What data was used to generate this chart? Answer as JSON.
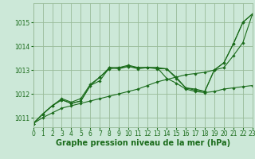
{
  "background_color": "#cce8d8",
  "grid_color": "#99bb99",
  "line_color": "#1a6b1a",
  "marker_color": "#1a6b1a",
  "xlabel": "Graphe pression niveau de la mer (hPa)",
  "xlabel_fontsize": 7.0,
  "xlim": [
    0,
    23
  ],
  "ylim": [
    1010.6,
    1015.8
  ],
  "yticks": [
    1011,
    1012,
    1013,
    1014,
    1015
  ],
  "xticks": [
    0,
    1,
    2,
    3,
    4,
    5,
    6,
    7,
    8,
    9,
    10,
    11,
    12,
    13,
    14,
    15,
    16,
    17,
    18,
    19,
    20,
    21,
    22,
    23
  ],
  "series": [
    {
      "x": [
        0,
        1,
        2,
        3,
        4,
        5,
        6,
        7,
        8,
        9,
        10,
        11,
        12,
        13,
        14,
        15,
        16,
        17,
        18,
        19,
        20,
        21,
        22,
        23
      ],
      "y": [
        1010.75,
        1011.0,
        1011.2,
        1011.4,
        1011.5,
        1011.6,
        1011.7,
        1011.8,
        1011.9,
        1012.0,
        1012.1,
        1012.2,
        1012.35,
        1012.5,
        1012.6,
        1012.7,
        1012.8,
        1012.85,
        1012.9,
        1013.0,
        1013.1,
        1013.6,
        1014.15,
        1015.35
      ]
    },
    {
      "x": [
        0,
        1,
        2,
        3,
        4,
        5,
        6,
        7,
        8,
        9,
        10,
        11,
        12,
        13,
        14,
        15,
        16,
        17,
        18,
        19,
        20,
        21,
        22,
        23
      ],
      "y": [
        1010.75,
        1011.15,
        1011.5,
        1011.75,
        1011.6,
        1011.7,
        1012.35,
        1012.7,
        1013.05,
        1013.1,
        1013.15,
        1013.1,
        1013.1,
        1013.1,
        1012.65,
        1012.45,
        1012.2,
        1012.1,
        1012.05,
        1012.1,
        1012.2,
        1012.25,
        1012.3,
        1012.35
      ]
    },
    {
      "x": [
        0,
        1,
        2,
        3,
        4,
        5,
        6,
        7,
        8,
        9,
        10,
        11,
        12,
        13,
        14,
        15,
        16,
        17,
        18,
        19,
        20,
        21,
        22,
        23
      ],
      "y": [
        1010.75,
        1011.15,
        1011.5,
        1011.75,
        1011.6,
        1011.7,
        1012.35,
        1012.55,
        1013.1,
        1013.05,
        1013.15,
        1013.05,
        1013.1,
        1013.05,
        1013.05,
        1012.7,
        1012.25,
        1012.15,
        1012.1,
        1013.0,
        1013.3,
        1014.1,
        1015.0,
        1015.35
      ]
    },
    {
      "x": [
        0,
        1,
        2,
        3,
        4,
        5,
        6,
        7,
        8,
        9,
        10,
        11,
        12,
        13,
        14,
        15,
        16,
        17,
        18,
        19,
        20,
        21,
        22,
        23
      ],
      "y": [
        1010.75,
        1011.15,
        1011.5,
        1011.8,
        1011.65,
        1011.8,
        1012.4,
        1012.7,
        1013.1,
        1013.1,
        1013.2,
        1013.1,
        1013.1,
        1013.1,
        1013.05,
        1012.65,
        1012.25,
        1012.2,
        1012.1,
        1013.0,
        1013.3,
        1014.1,
        1015.0,
        1015.35
      ]
    }
  ]
}
